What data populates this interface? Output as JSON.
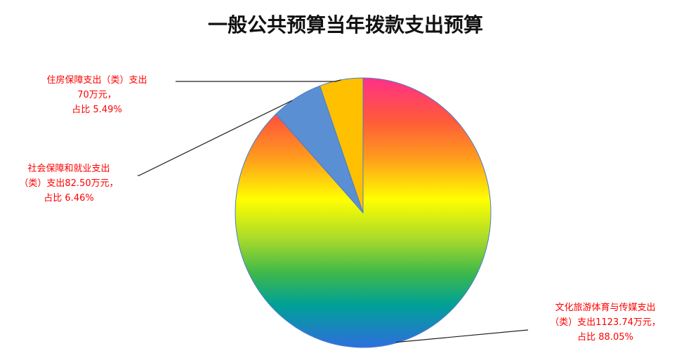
{
  "chart_data": {
    "type": "pie",
    "title": "一般公共预算当年拨款支出预算",
    "slices": [
      {
        "category": "文化旅游体育与传媒支出（类）",
        "value": 1123.74,
        "percent": 88.05,
        "label_lines": [
          "文化旅游体育与传媒支出",
          "（类）支出1123.74万元，",
          "占比 88.05%"
        ],
        "fill": "rainbow-gradient"
      },
      {
        "category": "社会保障和就业支出（类）",
        "value": 82.5,
        "percent": 6.46,
        "label_lines": [
          "社会保障和就业支出",
          "（类）支出82.50万元，",
          "占比 6.46%"
        ],
        "fill": "#5b8fd4"
      },
      {
        "category": "住房保障支出（类）",
        "value": 70,
        "percent": 5.49,
        "label_lines": [
          "住房保障支出（类）支出",
          "70万元，",
          "占比 5.49%"
        ],
        "fill": "#ffc000"
      }
    ],
    "unit": "万元",
    "start_angle": "12 o'clock",
    "direction": "clockwise",
    "legend": "none",
    "label_color": "#ff0000"
  }
}
